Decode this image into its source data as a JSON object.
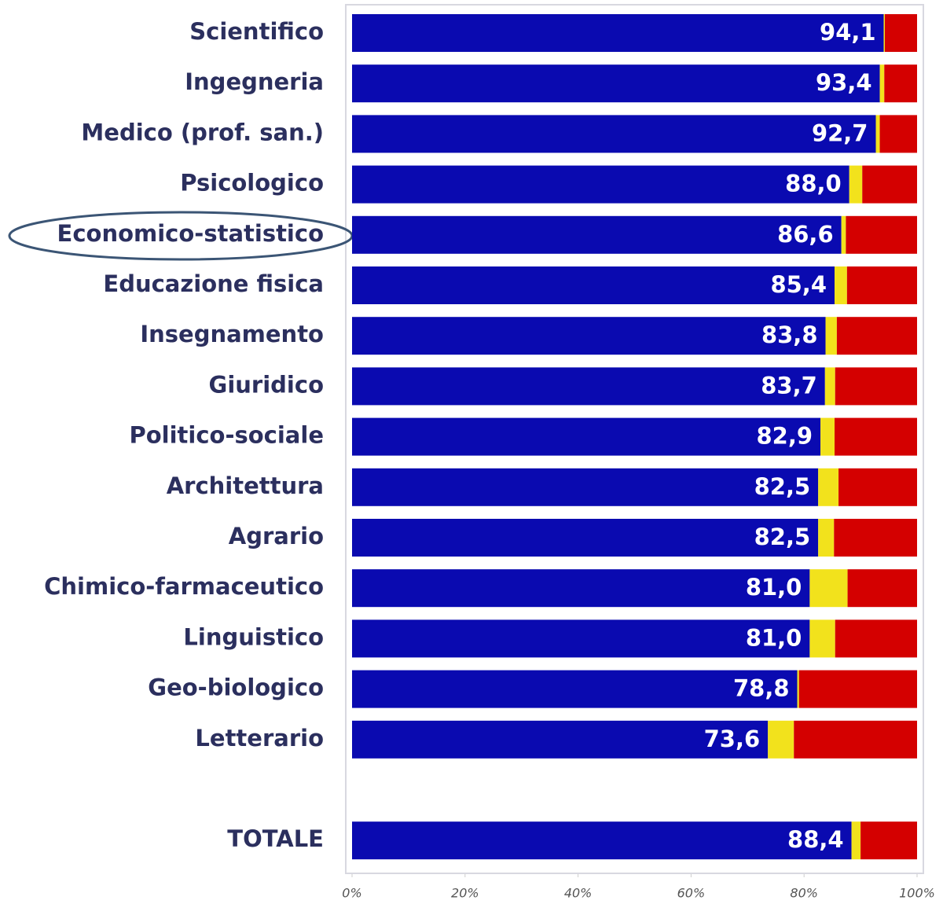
{
  "chart_data": {
    "type": "stacked_barh",
    "categories": [
      "Scientifico",
      "Ingegneria",
      "Medico (prof. san.)",
      "Psicologico",
      "Economico-statistico",
      "Educazione fisica",
      "Insegnamento",
      "Giuridico",
      "Politico-sociale",
      "Architettura",
      "Agrario",
      "Chimico-farmaceutico",
      "Linguistico",
      "Geo-biologico",
      "Letterario",
      null,
      "TOTALE"
    ],
    "series": [
      {
        "color": "#0a0ab0",
        "values": [
          94.1,
          93.4,
          92.7,
          88.0,
          86.6,
          85.4,
          83.8,
          83.7,
          82.9,
          82.5,
          82.5,
          81.0,
          81.0,
          78.8,
          73.6,
          null,
          88.4
        ],
        "value_labels": [
          "94,1",
          "93,4",
          "92,7",
          "88,0",
          "86,6",
          "85,4",
          "83,8",
          "83,7",
          "82,9",
          "82,5",
          "82,5",
          "81,0",
          "81,0",
          "78,8",
          "73,6",
          null,
          "88,4"
        ]
      },
      {
        "color": "#f2e21c",
        "values": [
          0.2,
          0.8,
          0.7,
          2.3,
          0.8,
          2.2,
          2.0,
          1.8,
          2.5,
          3.6,
          2.8,
          6.7,
          4.5,
          0.3,
          4.6,
          null,
          1.6
        ]
      },
      {
        "color": "#d40000",
        "values": [
          5.7,
          5.8,
          6.6,
          9.7,
          12.6,
          12.4,
          14.2,
          14.5,
          14.6,
          13.9,
          14.7,
          12.3,
          14.5,
          20.9,
          21.8,
          null,
          10.0
        ]
      }
    ],
    "xlim": [
      0,
      100
    ],
    "xticks": [
      {
        "value": 0,
        "label": "0%"
      },
      {
        "value": 20,
        "label": "20%"
      },
      {
        "value": 40,
        "label": "40%"
      },
      {
        "value": 60,
        "label": "60%"
      },
      {
        "value": 80,
        "label": "80%"
      },
      {
        "value": 100,
        "label": "100%"
      }
    ]
  }
}
